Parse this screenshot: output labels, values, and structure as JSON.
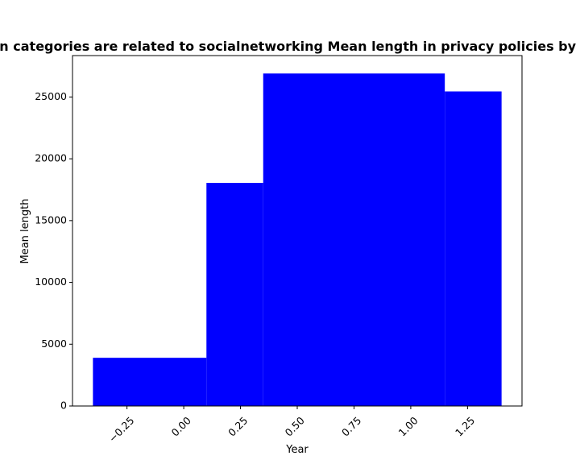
{
  "chart_data": {
    "type": "bar",
    "title": "When categories are related to socialnetworking Mean length in privacy policies by year",
    "xlabel": "Year",
    "ylabel": "Mean length",
    "bars": [
      {
        "x_start": -0.4,
        "x_end": 0.1,
        "value": 3900
      },
      {
        "x_start": 0.1,
        "x_end": 0.35,
        "value": 18050
      },
      {
        "x_start": 0.35,
        "x_end": 1.15,
        "value": 26900
      },
      {
        "x_start": 1.15,
        "x_end": 1.4,
        "value": 25450
      }
    ],
    "xlim": [
      -0.49,
      1.49
    ],
    "ylim": [
      0,
      28350
    ],
    "x_ticks": [
      -0.25,
      0.0,
      0.25,
      0.5,
      0.75,
      1.0,
      1.25
    ],
    "x_tick_labels": [
      "−0.25",
      "0.00",
      "0.25",
      "0.50",
      "0.75",
      "1.00",
      "1.25"
    ],
    "y_ticks": [
      0,
      5000,
      10000,
      15000,
      20000,
      25000
    ],
    "y_tick_labels": [
      "0",
      "5000",
      "10000",
      "15000",
      "20000",
      "25000"
    ],
    "bar_color": "#0000ff",
    "grid": false,
    "legend": "none"
  }
}
